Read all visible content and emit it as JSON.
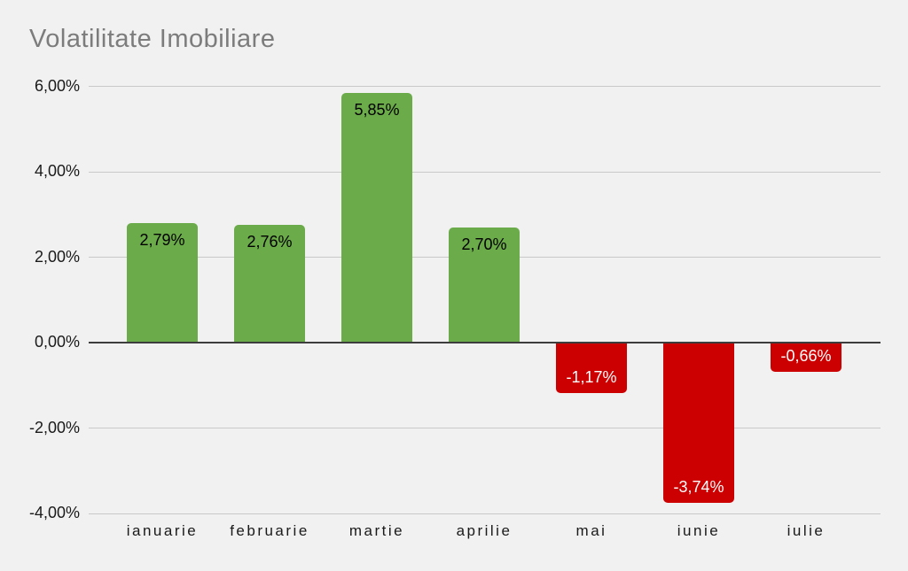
{
  "title": "Volatilitate Imobiliare",
  "colors": {
    "background": "#f1f1f2",
    "title_text": "#7c7c7c",
    "axis_text": "#1a1a1a",
    "gridline": "#c9c9c9",
    "zero_line": "#3d3d3d",
    "positive": "#6cab4a",
    "negative": "#cc0000",
    "positive_label": "#000000",
    "negative_label": "#ffffff"
  },
  "chart_data": {
    "type": "bar",
    "title": "Volatilitate Imobiliare",
    "categories": [
      "ianuarie",
      "februarie",
      "martie",
      "aprilie",
      "mai",
      "iunie",
      "iulie"
    ],
    "values": [
      2.79,
      2.76,
      5.85,
      2.7,
      -1.17,
      -3.74,
      -0.66
    ],
    "value_labels": [
      "2,79%",
      "2,76%",
      "5,85%",
      "2,70%",
      "-1,17%",
      "-3,74%",
      "-0,66%"
    ],
    "y_ticks": [
      "6,00%",
      "4,00%",
      "2,00%",
      "0,00%",
      "-2,00%",
      "-4,00%"
    ],
    "y_tick_values": [
      6,
      4,
      2,
      0,
      -2,
      -4
    ],
    "ylim": [
      -4,
      6
    ],
    "xlabel": "",
    "ylabel": "",
    "grid": true,
    "legend": false,
    "value_label_decimal_separator": ","
  }
}
